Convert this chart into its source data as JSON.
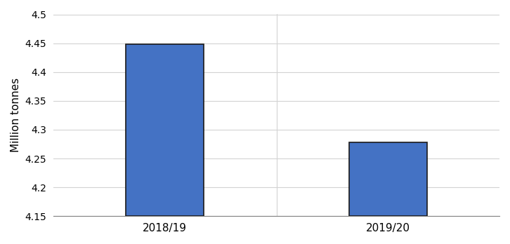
{
  "categories": [
    "2018/19",
    "2019/20"
  ],
  "values": [
    4.448,
    4.278
  ],
  "bar_color": "#4472C4",
  "bar_edgecolor": "#1a1a1a",
  "ylabel": "Million tonnes",
  "ylim": [
    4.15,
    4.5
  ],
  "yticks": [
    4.15,
    4.2,
    4.25,
    4.3,
    4.35,
    4.4,
    4.45,
    4.5
  ],
  "ytick_labels": [
    "4.15",
    "4.2",
    "4.25",
    "4.3",
    "4.35",
    "4.4",
    "4.45",
    "4.5"
  ],
  "bar_width": 0.35,
  "xlim": [
    -0.5,
    1.5
  ]
}
